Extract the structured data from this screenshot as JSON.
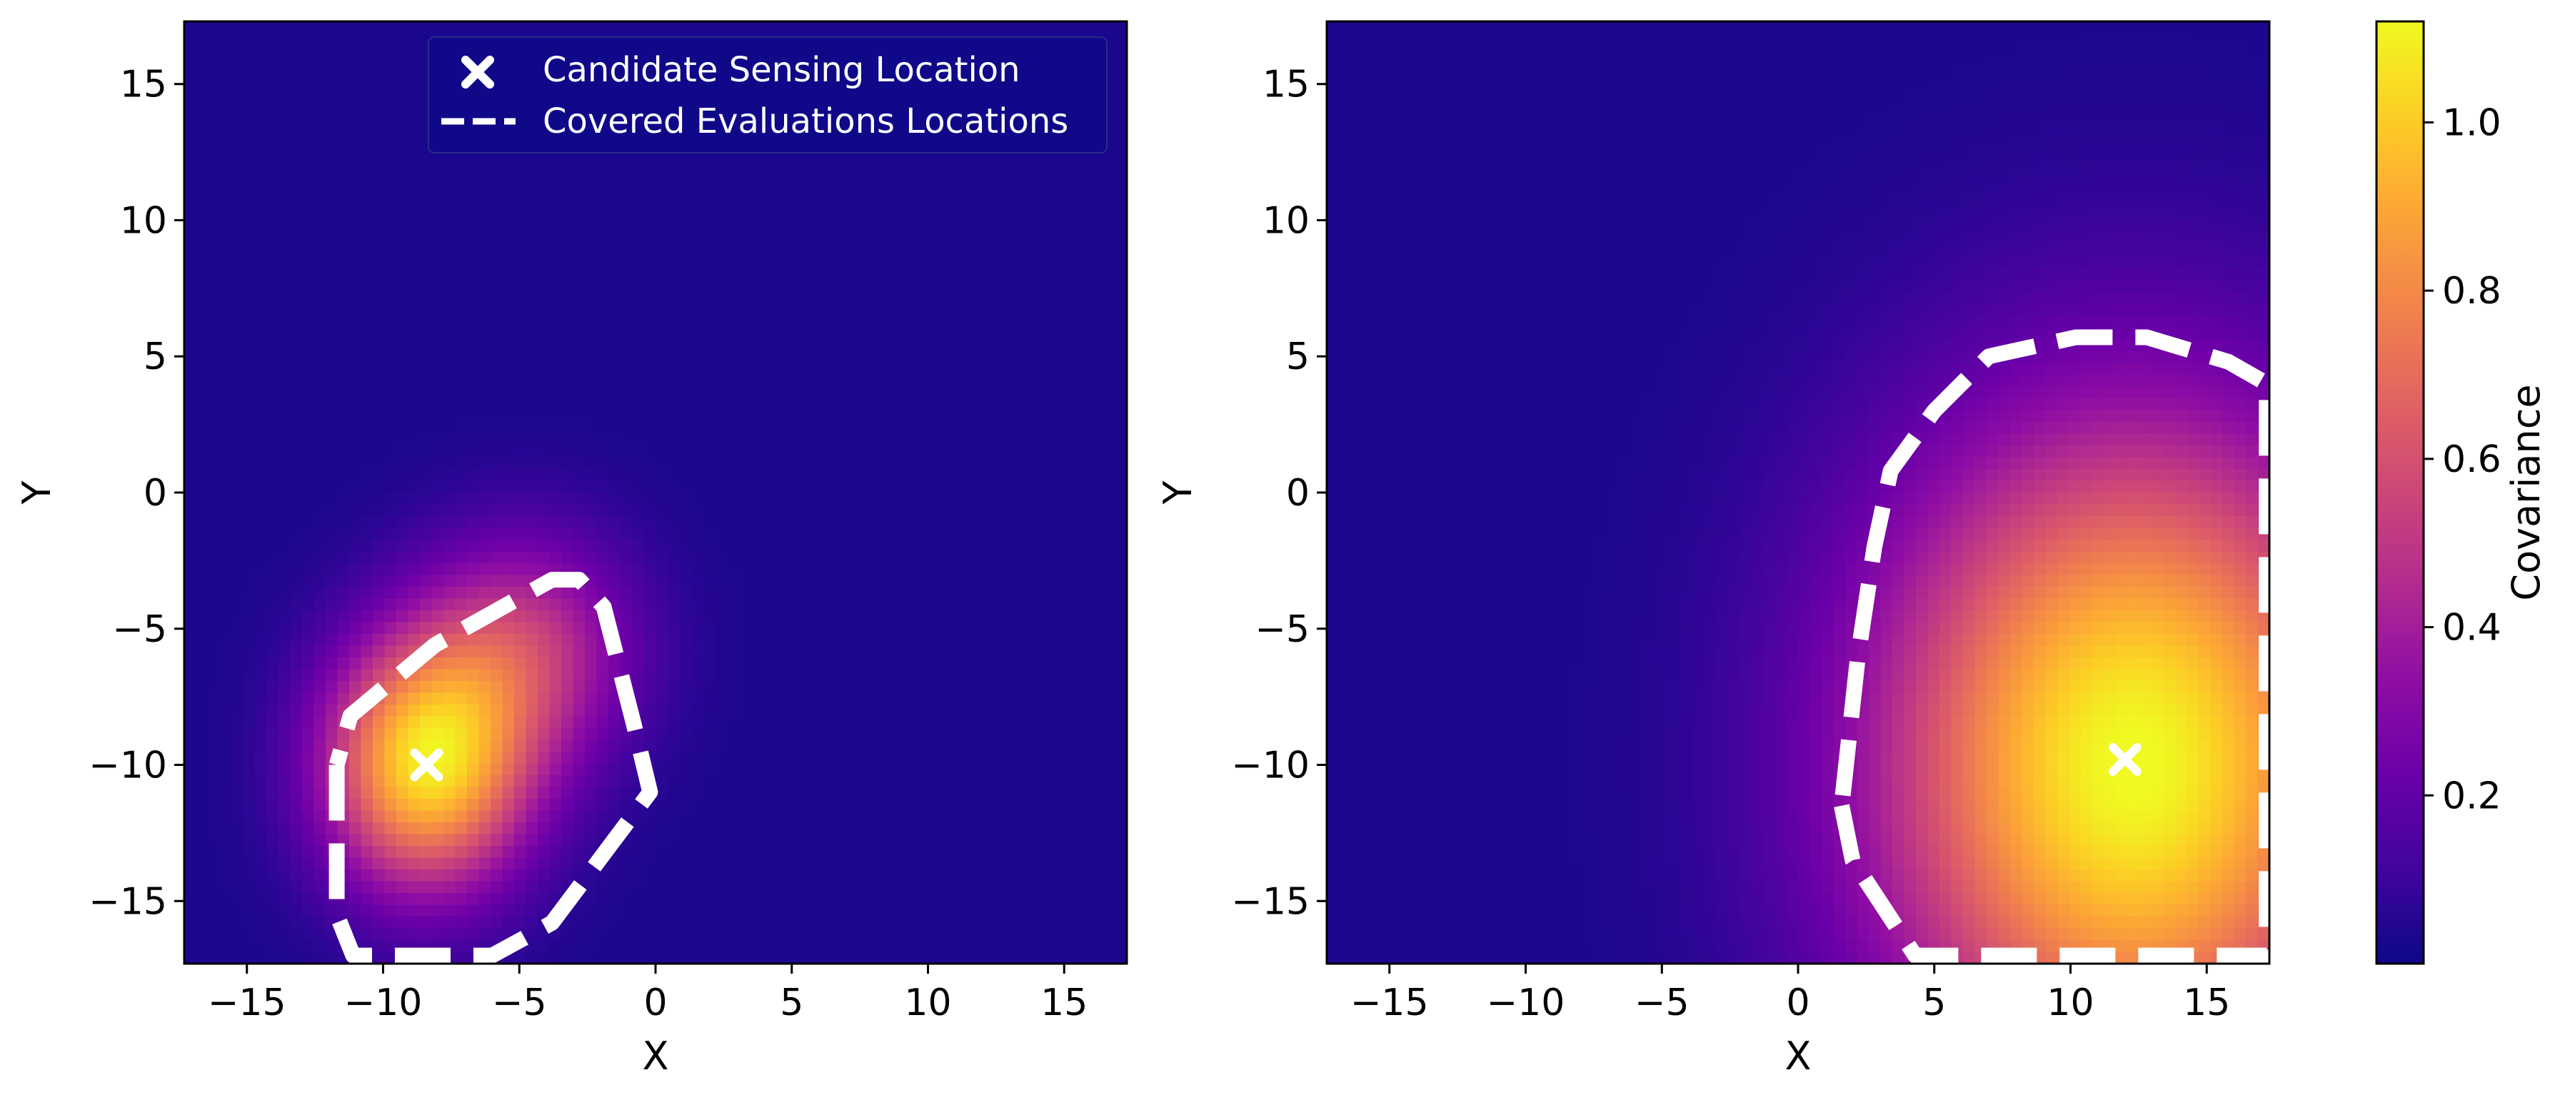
{
  "chart_data": [
    {
      "type": "heatmap",
      "panel": "left",
      "xlabel": "X",
      "ylabel": "Y",
      "xlim": [
        -17.3,
        17.3
      ],
      "ylim": [
        -17.3,
        17.3
      ],
      "xticks": [
        -15,
        -10,
        -5,
        0,
        5,
        10,
        15
      ],
      "yticks": [
        -15,
        -10,
        -5,
        0,
        5,
        10,
        15
      ],
      "xtick_labels": [
        "−15",
        "−10",
        "−5",
        "0",
        "5",
        "10",
        "15"
      ],
      "ytick_labels": [
        "−15",
        "−10",
        "−5",
        "0",
        "5",
        "10",
        "15"
      ],
      "grid": false,
      "legend": {
        "placement": "upper-right",
        "entries": [
          {
            "label": "Candidate Sensing Location",
            "marker": "x"
          },
          {
            "label": "Covered Evaluations Locations",
            "marker": "dashed-line"
          }
        ]
      },
      "candidate_location": {
        "x": -8.4,
        "y": -10.0
      },
      "covered_region": [
        [
          -11.7,
          -10.0
        ],
        [
          -11.7,
          -15.5
        ],
        [
          -11.1,
          -17.0
        ],
        [
          -6.0,
          -17.0
        ],
        [
          -3.8,
          -15.8
        ],
        [
          -0.2,
          -11.0
        ],
        [
          -0.8,
          -8.5
        ],
        [
          -1.9,
          -4.2
        ],
        [
          -2.8,
          -3.2
        ],
        [
          -3.8,
          -3.2
        ],
        [
          -8.1,
          -5.6
        ],
        [
          -11.2,
          -8.2
        ],
        [
          -11.7,
          -10.0
        ]
      ],
      "covariance_peaks": [
        {
          "x": -8.4,
          "y": -10.0,
          "value": 1.0,
          "sx": 2.6,
          "sy": 3.2
        },
        {
          "x": -4.8,
          "y": -5.8,
          "value": 0.45,
          "sx": 2.8,
          "sy": 3.0
        }
      ],
      "background_value": 0.03
    },
    {
      "type": "heatmap",
      "panel": "right",
      "xlabel": "X",
      "ylabel": "Y",
      "xlim": [
        -17.3,
        17.3
      ],
      "ylim": [
        -17.3,
        17.3
      ],
      "xticks": [
        -15,
        -10,
        -5,
        0,
        5,
        10,
        15
      ],
      "yticks": [
        -15,
        -10,
        -5,
        0,
        5,
        10,
        15
      ],
      "xtick_labels": [
        "−15",
        "−10",
        "−5",
        "0",
        "5",
        "10",
        "15"
      ],
      "ytick_labels": [
        "−15",
        "−10",
        "−5",
        "0",
        "5",
        "10",
        "15"
      ],
      "grid": false,
      "candidate_location": {
        "x": 12.0,
        "y": -9.8
      },
      "covered_region": [
        [
          1.6,
          -11.5
        ],
        [
          2.0,
          -13.5
        ],
        [
          4.3,
          -17.0
        ],
        [
          17.2,
          -17.0
        ],
        [
          17.2,
          4.0
        ],
        [
          15.8,
          4.8
        ],
        [
          12.8,
          5.7
        ],
        [
          10.2,
          5.7
        ],
        [
          7.0,
          5.0
        ],
        [
          5.0,
          3.0
        ],
        [
          3.4,
          0.8
        ],
        [
          2.8,
          -2.0
        ],
        [
          2.2,
          -6.0
        ],
        [
          1.6,
          -11.5
        ]
      ],
      "covariance_peaks": [
        {
          "x": 12.3,
          "y": -10.0,
          "value": 1.1,
          "sx": 6.5,
          "sy": 8.5
        }
      ],
      "background_value": 0.03
    }
  ],
  "colorbar": {
    "label": "Covariance",
    "range": [
      0.0,
      1.12
    ],
    "ticks": [
      0.2,
      0.4,
      0.6,
      0.8,
      1.0
    ],
    "tick_labels": [
      "0.2",
      "0.4",
      "0.6",
      "0.8",
      "1.0"
    ],
    "colormap": "plasma",
    "colormap_stops": [
      "#0d0887",
      "#41049d",
      "#6a00a8",
      "#8f0da4",
      "#b12a90",
      "#cc4778",
      "#e16462",
      "#f2844b",
      "#fca636",
      "#fcce25",
      "#f0f921"
    ]
  }
}
